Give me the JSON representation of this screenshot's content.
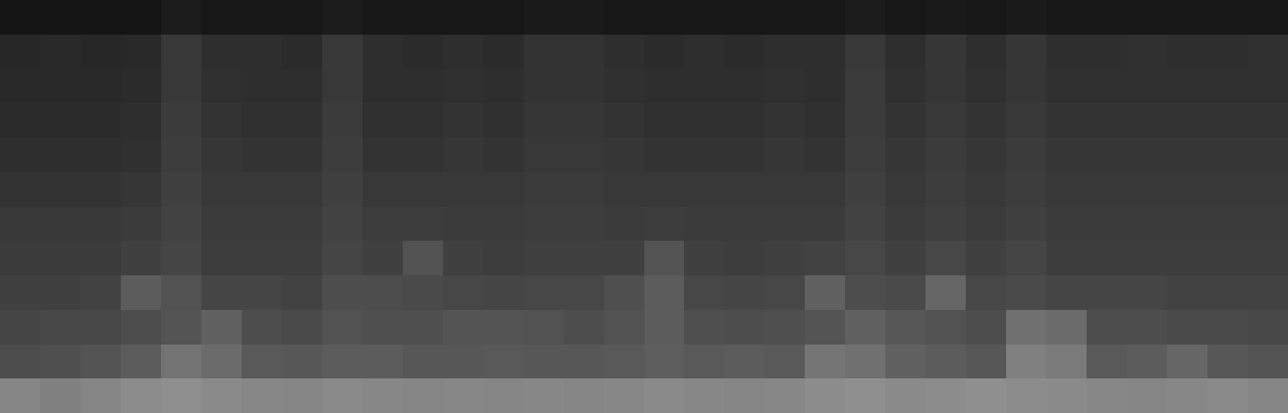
{
  "chart_data": {
    "type": "heatmap",
    "tick_labels": false,
    "zlim": [
      0,
      1
    ],
    "cells": [
      [
        0.08,
        0.08,
        0.08,
        0.08,
        0.11,
        0.09,
        0.09,
        0.09,
        0.11,
        0.09,
        0.09,
        0.09,
        0.09,
        0.1,
        0.1,
        0.09,
        0.09,
        0.09,
        0.09,
        0.09,
        0.09,
        0.11,
        0.09,
        0.1,
        0.09,
        0.1,
        0.09,
        0.09,
        0.09,
        0.09,
        0.09,
        0.09
      ],
      [
        0.15,
        0.16,
        0.15,
        0.16,
        0.22,
        0.18,
        0.18,
        0.17,
        0.22,
        0.18,
        0.17,
        0.18,
        0.17,
        0.2,
        0.2,
        0.18,
        0.17,
        0.18,
        0.17,
        0.18,
        0.18,
        0.22,
        0.18,
        0.21,
        0.18,
        0.21,
        0.18,
        0.18,
        0.19,
        0.18,
        0.18,
        0.19
      ],
      [
        0.16,
        0.16,
        0.16,
        0.17,
        0.22,
        0.19,
        0.18,
        0.18,
        0.22,
        0.18,
        0.18,
        0.19,
        0.18,
        0.2,
        0.2,
        0.19,
        0.18,
        0.18,
        0.18,
        0.19,
        0.18,
        0.23,
        0.19,
        0.21,
        0.19,
        0.21,
        0.19,
        0.19,
        0.19,
        0.19,
        0.19,
        0.19
      ],
      [
        0.17,
        0.17,
        0.17,
        0.18,
        0.23,
        0.2,
        0.19,
        0.19,
        0.23,
        0.19,
        0.19,
        0.2,
        0.19,
        0.21,
        0.21,
        0.2,
        0.19,
        0.19,
        0.19,
        0.2,
        0.19,
        0.23,
        0.2,
        0.22,
        0.2,
        0.22,
        0.2,
        0.2,
        0.2,
        0.2,
        0.2,
        0.2
      ],
      [
        0.18,
        0.18,
        0.18,
        0.19,
        0.24,
        0.21,
        0.2,
        0.2,
        0.24,
        0.2,
        0.2,
        0.21,
        0.2,
        0.22,
        0.22,
        0.21,
        0.2,
        0.2,
        0.2,
        0.21,
        0.2,
        0.24,
        0.21,
        0.23,
        0.21,
        0.23,
        0.21,
        0.21,
        0.21,
        0.21,
        0.21,
        0.21
      ],
      [
        0.2,
        0.2,
        0.2,
        0.21,
        0.25,
        0.22,
        0.22,
        0.22,
        0.25,
        0.22,
        0.22,
        0.22,
        0.22,
        0.23,
        0.23,
        0.22,
        0.22,
        0.22,
        0.22,
        0.22,
        0.22,
        0.25,
        0.22,
        0.24,
        0.22,
        0.24,
        0.22,
        0.22,
        0.22,
        0.22,
        0.22,
        0.22
      ],
      [
        0.22,
        0.22,
        0.22,
        0.23,
        0.26,
        0.23,
        0.23,
        0.23,
        0.26,
        0.24,
        0.24,
        0.23,
        0.23,
        0.24,
        0.24,
        0.23,
        0.24,
        0.23,
        0.23,
        0.23,
        0.23,
        0.26,
        0.23,
        0.25,
        0.23,
        0.25,
        0.23,
        0.23,
        0.23,
        0.23,
        0.23,
        0.23
      ],
      [
        0.23,
        0.23,
        0.23,
        0.25,
        0.27,
        0.24,
        0.24,
        0.24,
        0.27,
        0.25,
        0.32,
        0.25,
        0.24,
        0.25,
        0.25,
        0.25,
        0.33,
        0.25,
        0.24,
        0.25,
        0.26,
        0.28,
        0.25,
        0.28,
        0.25,
        0.27,
        0.24,
        0.24,
        0.24,
        0.24,
        0.24,
        0.24
      ],
      [
        0.25,
        0.25,
        0.26,
        0.36,
        0.32,
        0.27,
        0.27,
        0.26,
        0.3,
        0.3,
        0.29,
        0.28,
        0.27,
        0.28,
        0.28,
        0.31,
        0.36,
        0.28,
        0.27,
        0.28,
        0.38,
        0.3,
        0.29,
        0.4,
        0.28,
        0.29,
        0.27,
        0.27,
        0.27,
        0.26,
        0.26,
        0.26
      ],
      [
        0.27,
        0.28,
        0.28,
        0.3,
        0.33,
        0.38,
        0.3,
        0.29,
        0.32,
        0.31,
        0.31,
        0.33,
        0.33,
        0.32,
        0.3,
        0.32,
        0.36,
        0.31,
        0.3,
        0.31,
        0.33,
        0.38,
        0.34,
        0.32,
        0.3,
        0.44,
        0.42,
        0.3,
        0.3,
        0.29,
        0.29,
        0.28
      ],
      [
        0.3,
        0.31,
        0.33,
        0.36,
        0.45,
        0.42,
        0.35,
        0.34,
        0.36,
        0.36,
        0.34,
        0.34,
        0.35,
        0.34,
        0.34,
        0.35,
        0.37,
        0.35,
        0.36,
        0.35,
        0.46,
        0.44,
        0.38,
        0.36,
        0.34,
        0.5,
        0.48,
        0.35,
        0.36,
        0.4,
        0.34,
        0.33
      ],
      [
        0.52,
        0.5,
        0.52,
        0.55,
        0.56,
        0.54,
        0.53,
        0.52,
        0.54,
        0.53,
        0.52,
        0.53,
        0.52,
        0.53,
        0.52,
        0.53,
        0.54,
        0.53,
        0.52,
        0.53,
        0.55,
        0.56,
        0.54,
        0.55,
        0.56,
        0.55,
        0.54,
        0.53,
        0.52,
        0.53,
        0.54,
        0.52
      ]
    ]
  }
}
